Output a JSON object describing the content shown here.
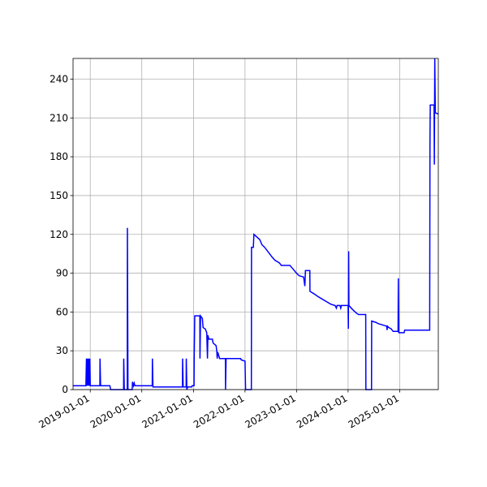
{
  "chart_data": {
    "type": "line",
    "title": "",
    "xlabel": "",
    "ylabel": "",
    "xlim": [
      "2018-09-01",
      "2025-10-01"
    ],
    "ylim": [
      0,
      256
    ],
    "grid": true,
    "line_color": "#0000ff",
    "x_ticks": [
      "2019-01-01",
      "2020-01-01",
      "2021-01-01",
      "2022-01-01",
      "2023-01-01",
      "2024-01-01",
      "2025-01-01"
    ],
    "y_ticks": [
      0,
      30,
      60,
      90,
      120,
      150,
      180,
      210,
      240
    ],
    "series": [
      {
        "name": "",
        "points": [
          [
            "2018-09-01",
            3
          ],
          [
            "2018-12-01",
            3
          ],
          [
            "2018-12-05",
            24
          ],
          [
            "2018-12-09",
            3
          ],
          [
            "2018-12-13",
            24
          ],
          [
            "2018-12-17",
            3
          ],
          [
            "2018-12-21",
            24
          ],
          [
            "2018-12-25",
            3
          ],
          [
            "2018-12-29",
            24
          ],
          [
            "2019-01-01",
            3
          ],
          [
            "2019-03-10",
            3
          ],
          [
            "2019-03-11",
            24
          ],
          [
            "2019-03-15",
            3
          ],
          [
            "2019-05-20",
            3
          ],
          [
            "2019-05-25",
            0
          ],
          [
            "2019-08-25",
            0
          ],
          [
            "2019-08-26",
            24
          ],
          [
            "2019-08-30",
            0
          ],
          [
            "2019-09-20",
            0
          ],
          [
            "2019-09-21",
            125
          ],
          [
            "2019-09-25",
            0
          ],
          [
            "2019-10-25",
            0
          ],
          [
            "2019-10-27",
            6
          ],
          [
            "2019-11-03",
            3
          ],
          [
            "2019-11-08",
            5
          ],
          [
            "2019-11-13",
            3
          ],
          [
            "2020-03-15",
            3
          ],
          [
            "2020-03-16",
            24
          ],
          [
            "2020-03-20",
            2
          ],
          [
            "2020-10-15",
            2
          ],
          [
            "2020-10-16",
            24
          ],
          [
            "2020-10-20",
            2
          ],
          [
            "2020-11-10",
            2
          ],
          [
            "2020-11-11",
            24
          ],
          [
            "2020-11-15",
            0
          ],
          [
            "2020-11-20",
            2
          ],
          [
            "2020-12-20",
            2
          ],
          [
            "2020-12-22",
            3
          ],
          [
            "2021-01-05",
            3
          ],
          [
            "2021-01-06",
            24
          ],
          [
            "2021-01-10",
            57
          ],
          [
            "2021-02-15",
            57
          ],
          [
            "2021-02-16",
            24
          ],
          [
            "2021-02-20",
            57
          ],
          [
            "2021-03-05",
            55
          ],
          [
            "2021-03-10",
            48
          ],
          [
            "2021-03-25",
            47
          ],
          [
            "2021-04-05",
            44
          ],
          [
            "2021-04-10",
            24
          ],
          [
            "2021-04-13",
            42
          ],
          [
            "2021-04-20",
            39
          ],
          [
            "2021-05-15",
            39
          ],
          [
            "2021-05-20",
            36
          ],
          [
            "2021-06-10",
            34
          ],
          [
            "2021-06-15",
            30
          ],
          [
            "2021-06-18",
            24
          ],
          [
            "2021-06-22",
            29
          ],
          [
            "2021-07-05",
            24
          ],
          [
            "2021-08-15",
            24
          ],
          [
            "2021-08-16",
            0
          ],
          [
            "2021-08-20",
            24
          ],
          [
            "2021-12-01",
            24
          ],
          [
            "2021-12-05",
            23
          ],
          [
            "2022-01-01",
            22
          ],
          [
            "2022-01-05",
            0
          ],
          [
            "2022-02-15",
            0
          ],
          [
            "2022-02-16",
            110
          ],
          [
            "2022-03-01",
            110
          ],
          [
            "2022-03-05",
            120
          ],
          [
            "2022-04-15",
            116
          ],
          [
            "2022-05-01",
            112
          ],
          [
            "2022-05-20",
            110
          ],
          [
            "2022-07-15",
            102
          ],
          [
            "2022-08-01",
            100
          ],
          [
            "2022-09-01",
            98
          ],
          [
            "2022-09-15",
            96
          ],
          [
            "2022-11-15",
            96
          ],
          [
            "2022-12-01",
            94
          ],
          [
            "2023-01-01",
            90
          ],
          [
            "2023-01-20",
            88
          ],
          [
            "2023-02-20",
            87
          ],
          [
            "2023-03-01",
            80
          ],
          [
            "2023-03-05",
            92
          ],
          [
            "2023-04-05",
            92
          ],
          [
            "2023-04-06",
            76
          ],
          [
            "2023-05-05",
            74
          ],
          [
            "2023-06-01",
            72
          ],
          [
            "2023-07-01",
            70
          ],
          [
            "2023-08-01",
            68
          ],
          [
            "2023-09-01",
            66
          ],
          [
            "2023-10-01",
            65
          ],
          [
            "2023-10-10",
            63
          ],
          [
            "2023-10-15",
            65
          ],
          [
            "2023-11-05",
            65
          ],
          [
            "2023-11-10",
            63
          ],
          [
            "2023-11-15",
            65
          ],
          [
            "2024-01-01",
            65
          ],
          [
            "2024-01-03",
            47
          ],
          [
            "2024-01-05",
            107
          ],
          [
            "2024-01-07",
            65
          ],
          [
            "2024-02-01",
            62
          ],
          [
            "2024-03-01",
            59
          ],
          [
            "2024-03-15",
            58
          ],
          [
            "2024-05-05",
            58
          ],
          [
            "2024-05-06",
            0
          ],
          [
            "2024-06-15",
            0
          ],
          [
            "2024-06-16",
            53
          ],
          [
            "2024-07-15",
            52
          ],
          [
            "2024-08-01",
            51
          ],
          [
            "2024-09-01",
            50
          ],
          [
            "2024-10-01",
            49
          ],
          [
            "2024-10-03",
            46
          ],
          [
            "2024-10-06",
            49
          ],
          [
            "2024-10-15",
            48
          ],
          [
            "2024-11-01",
            47
          ],
          [
            "2024-11-15",
            45
          ],
          [
            "2024-12-20",
            45
          ],
          [
            "2024-12-22",
            86
          ],
          [
            "2024-12-25",
            44
          ],
          [
            "2025-02-01",
            44
          ],
          [
            "2025-02-05",
            46
          ],
          [
            "2025-08-01",
            46
          ],
          [
            "2025-08-03",
            190
          ],
          [
            "2025-08-05",
            220
          ],
          [
            "2025-09-01",
            220
          ],
          [
            "2025-09-03",
            174
          ],
          [
            "2025-09-06",
            256
          ],
          [
            "2025-09-10",
            214
          ],
          [
            "2025-10-01",
            213
          ]
        ]
      }
    ]
  }
}
